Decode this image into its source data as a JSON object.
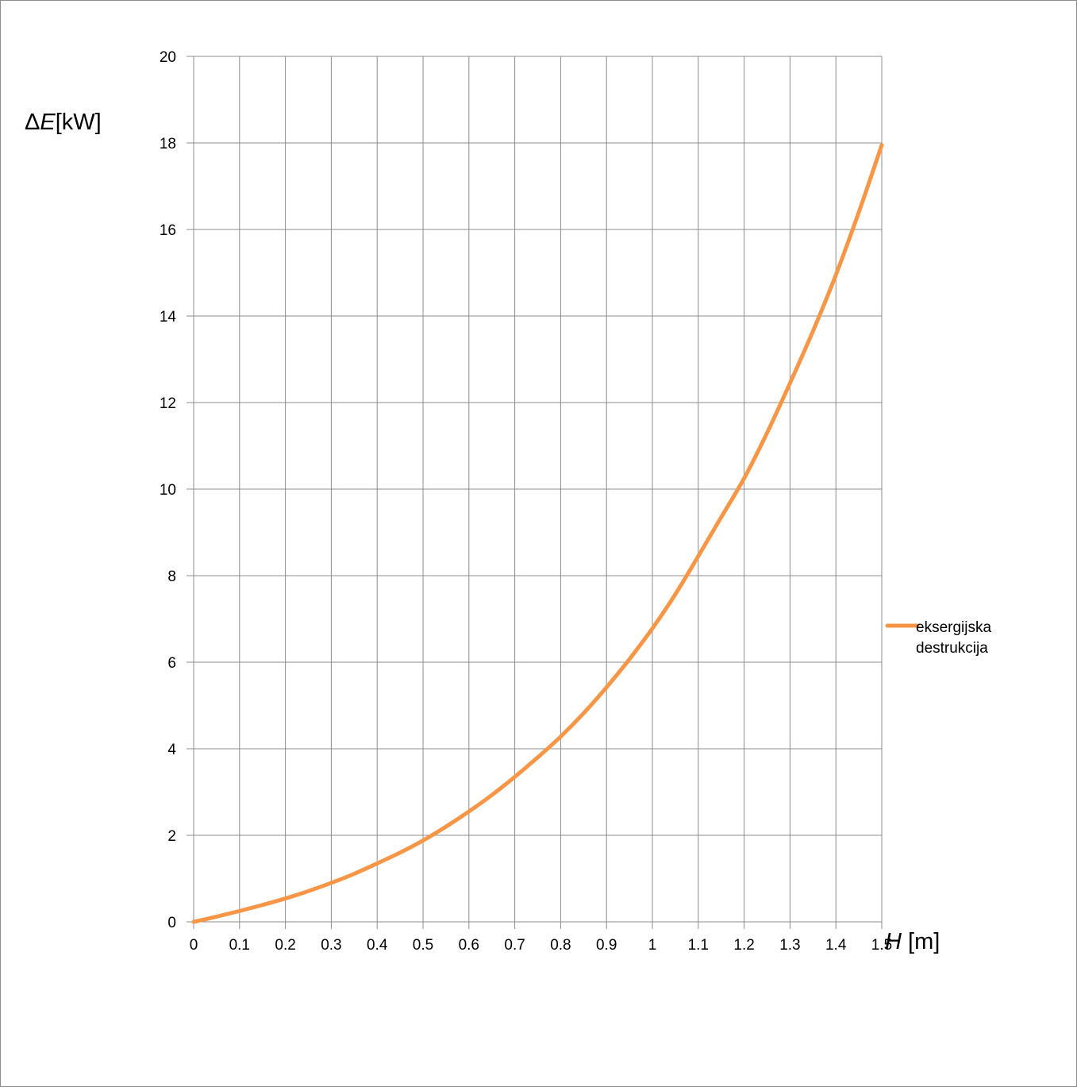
{
  "chart_data": {
    "type": "line",
    "title": "",
    "xlabel": {
      "symbol": "H",
      "unit": " [m]"
    },
    "ylabel": {
      "prefix": "Δ",
      "symbol": "E",
      "unit": "[kW]"
    },
    "xlim": [
      0,
      1.5
    ],
    "ylim": [
      0,
      20
    ],
    "x_ticks": [
      "0",
      "0.1",
      "0.2",
      "0.3",
      "0.4",
      "0.5",
      "0.6",
      "0.7",
      "0.8",
      "0.9",
      "1",
      "1.1",
      "1.2",
      "1.3",
      "1.4",
      "1.5"
    ],
    "y_ticks": [
      "0",
      "2",
      "4",
      "6",
      "8",
      "10",
      "12",
      "14",
      "16",
      "18",
      "20"
    ],
    "grid": true,
    "legend_position": "right",
    "series": [
      {
        "name": "eksergijska destrukcija",
        "color": "#f79646",
        "x": [
          0,
          0.05,
          0.1,
          0.15,
          0.2,
          0.25,
          0.3,
          0.35,
          0.4,
          0.45,
          0.5,
          0.55,
          0.6,
          0.65,
          0.7,
          0.75,
          0.8,
          0.85,
          0.9,
          0.95,
          1.0,
          1.05,
          1.1,
          1.15,
          1.2,
          1.25,
          1.3,
          1.35,
          1.4,
          1.45,
          1.5
        ],
        "y": [
          0,
          0.12,
          0.25,
          0.39,
          0.54,
          0.71,
          0.9,
          1.11,
          1.35,
          1.6,
          1.88,
          2.2,
          2.55,
          2.93,
          3.35,
          3.8,
          4.28,
          4.82,
          5.42,
          6.07,
          6.78,
          7.57,
          8.45,
          9.35,
          10.25,
          11.3,
          12.45,
          13.65,
          14.95,
          16.4,
          17.95
        ]
      }
    ]
  }
}
